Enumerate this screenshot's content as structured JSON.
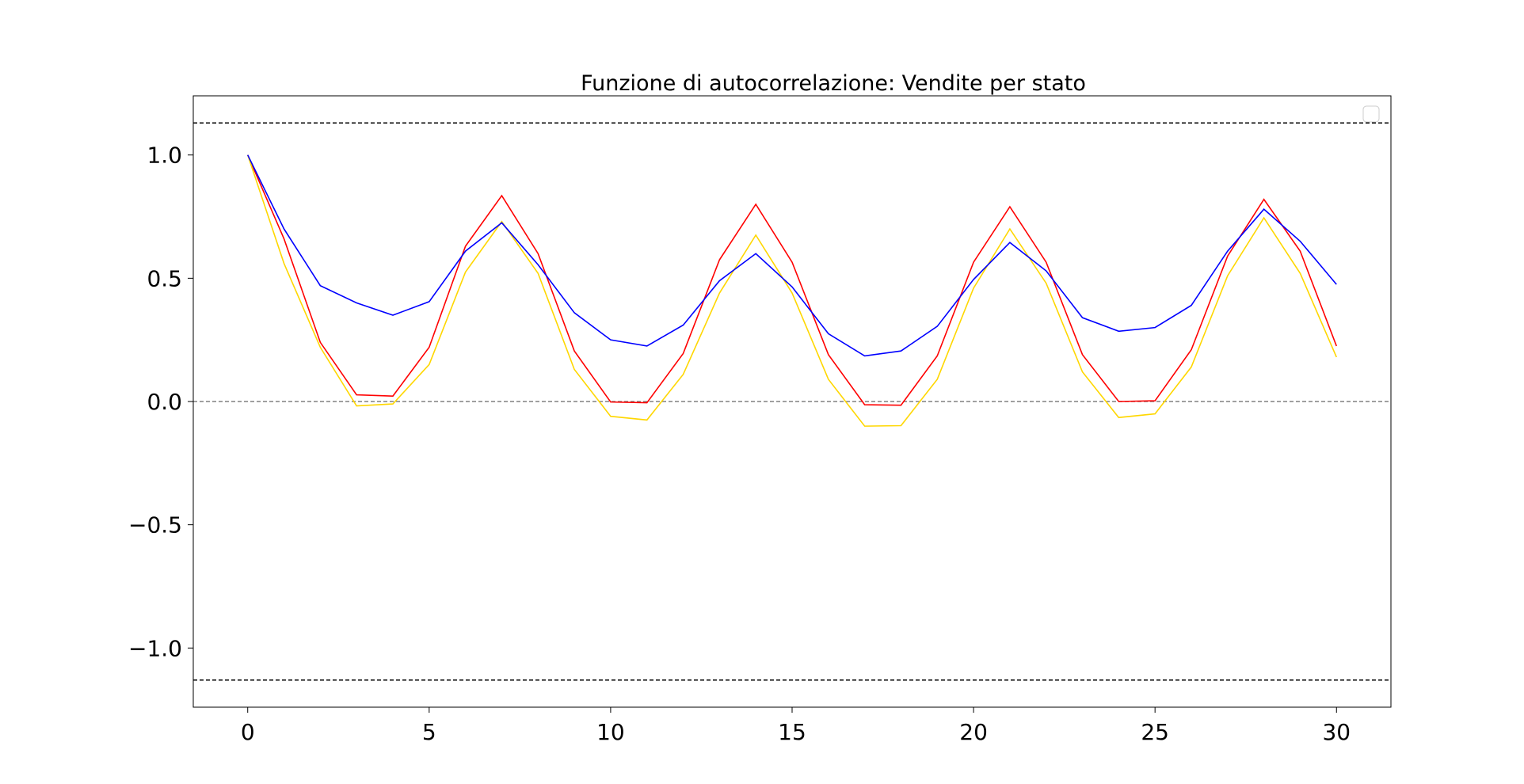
{
  "chart_data": {
    "type": "line",
    "title": "Funzione di autocorrelazione: Vendite per stato",
    "xlabel": "",
    "ylabel": "",
    "xlim": [
      -1.5,
      31.5
    ],
    "ylim": [
      -1.24,
      1.24
    ],
    "x_ticks": [
      0,
      5,
      10,
      15,
      20,
      25,
      30
    ],
    "y_ticks": [
      -1.0,
      -0.5,
      0.0,
      0.5,
      1.0
    ],
    "x_tick_labels": [
      "0",
      "5",
      "10",
      "15",
      "20",
      "25",
      "30"
    ],
    "y_tick_labels": [
      "−1.0",
      "−0.5",
      "0.0",
      "0.5",
      "1.0"
    ],
    "grid": false,
    "legend": {
      "placement": "top-right",
      "entries": []
    },
    "reference_lines": [
      {
        "y": 1.13,
        "color": "#000000",
        "style": "dashed"
      },
      {
        "y": 0.0,
        "color": "#808080",
        "style": "dashed"
      },
      {
        "y": -1.13,
        "color": "#000000",
        "style": "dashed"
      }
    ],
    "x": [
      0,
      1,
      2,
      3,
      4,
      5,
      6,
      7,
      8,
      9,
      10,
      11,
      12,
      13,
      14,
      15,
      16,
      17,
      18,
      19,
      20,
      21,
      22,
      23,
      24,
      25,
      26,
      27,
      28,
      29,
      30
    ],
    "series": [
      {
        "color": "#ff0000",
        "values": [
          1.0,
          0.66,
          0.24,
          0.027,
          0.022,
          0.22,
          0.63,
          0.835,
          0.6,
          0.205,
          -0.002,
          -0.005,
          0.195,
          0.575,
          0.8,
          0.565,
          0.19,
          -0.013,
          -0.015,
          0.185,
          0.565,
          0.79,
          0.565,
          0.19,
          0.0,
          0.003,
          0.21,
          0.59,
          0.82,
          0.61,
          0.225
        ]
      },
      {
        "color": "#ffd700",
        "values": [
          1.0,
          0.56,
          0.22,
          -0.018,
          -0.01,
          0.15,
          0.525,
          0.73,
          0.52,
          0.13,
          -0.06,
          -0.075,
          0.11,
          0.44,
          0.675,
          0.44,
          0.09,
          -0.1,
          -0.098,
          0.09,
          0.46,
          0.7,
          0.48,
          0.12,
          -0.065,
          -0.05,
          0.14,
          0.51,
          0.745,
          0.52,
          0.18
        ]
      },
      {
        "color": "#0000ff",
        "values": [
          1.0,
          0.7,
          0.47,
          0.4,
          0.35,
          0.405,
          0.61,
          0.725,
          0.555,
          0.36,
          0.25,
          0.225,
          0.31,
          0.49,
          0.6,
          0.465,
          0.275,
          0.185,
          0.205,
          0.305,
          0.495,
          0.645,
          0.53,
          0.34,
          0.285,
          0.3,
          0.39,
          0.61,
          0.78,
          0.65,
          0.475
        ]
      }
    ]
  }
}
